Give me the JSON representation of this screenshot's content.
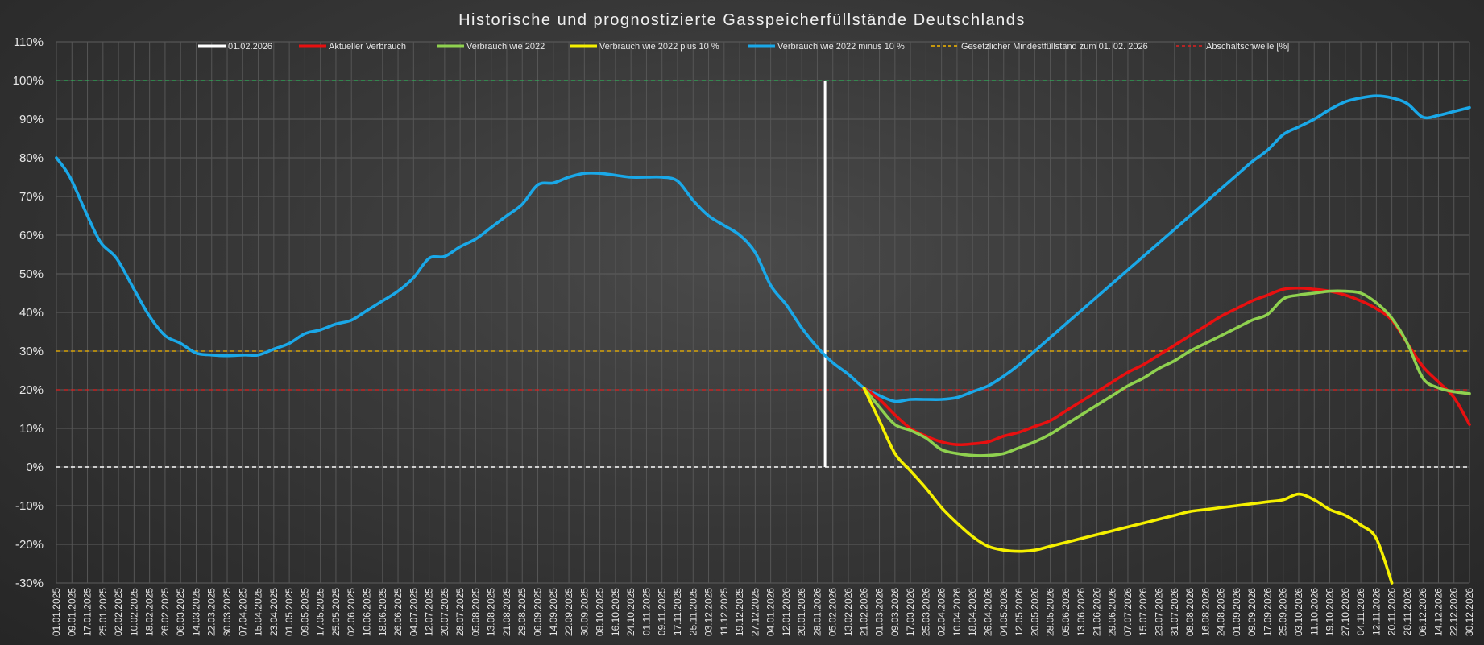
{
  "chart_data": {
    "type": "line",
    "title": "Historische und prognostizierte Gasspeicherfüllstände Deutschlands",
    "ylim": [
      -30,
      110
    ],
    "yticks": [
      110,
      100,
      90,
      80,
      70,
      60,
      50,
      40,
      30,
      20,
      10,
      0,
      -10,
      -20,
      -30
    ],
    "ytick_labels": [
      "110%",
      "100%",
      "90%",
      "80%",
      "70%",
      "60%",
      "50%",
      "40%",
      "30%",
      "20%",
      "10%",
      "0%",
      "-10%",
      "-20%",
      "-30%"
    ],
    "x_range": [
      "2025-01-01",
      "2026-12-30"
    ],
    "x_tick_labels": [
      "01.01.2025",
      "09.01.2025",
      "17.01.2025",
      "25.01.2025",
      "02.02.2025",
      "10.02.2025",
      "18.02.2025",
      "26.02.2025",
      "06.03.2025",
      "14.03.2025",
      "22.03.2025",
      "30.03.2025",
      "07.04.2025",
      "15.04.2025",
      "23.04.2025",
      "01.05.2025",
      "09.05.2025",
      "17.05.2025",
      "25.05.2025",
      "02.06.2025",
      "10.06.2025",
      "18.06.2025",
      "26.06.2025",
      "04.07.2025",
      "12.07.2025",
      "20.07.2025",
      "28.07.2025",
      "05.08.2025",
      "13.08.2025",
      "21.08.2025",
      "29.08.2025",
      "06.09.2025",
      "14.09.2025",
      "22.09.2025",
      "30.09.2025",
      "08.10.2025",
      "16.10.2025",
      "24.10.2025",
      "01.11.2025",
      "09.11.2025",
      "17.11.2025",
      "25.11.2025",
      "03.12.2025",
      "11.12.2025",
      "19.12.2025",
      "27.12.2025",
      "04.01.2026",
      "12.01.2026",
      "20.01.2026",
      "28.01.2026",
      "05.02.2026",
      "13.02.2026",
      "21.02.2026",
      "01.03.2026",
      "09.03.2026",
      "17.03.2026",
      "25.03.2026",
      "02.04.2026",
      "10.04.2026",
      "18.04.2026",
      "26.04.2026",
      "04.05.2026",
      "12.05.2026",
      "20.05.2026",
      "28.05.2026",
      "05.06.2026",
      "13.06.2026",
      "21.06.2026",
      "29.06.2026",
      "07.07.2026",
      "15.07.2026",
      "23.07.2026",
      "31.07.2026",
      "08.08.2026",
      "16.08.2026",
      "24.08.2026",
      "01.09.2026",
      "09.09.2026",
      "17.09.2026",
      "25.09.2026",
      "03.10.2026",
      "11.10.2026",
      "19.10.2026",
      "27.10.2026",
      "04.11.2026",
      "12.11.2026",
      "20.11.2026",
      "28.11.2026",
      "06.12.2026",
      "14.12.2026",
      "22.12.2026",
      "30.12.2026"
    ],
    "grid": true,
    "legend_position": "top",
    "marker_line": {
      "name": "01.02.2026",
      "x": "2026-02-01",
      "y_from": 0,
      "y_to": 100,
      "color": "#ffffff"
    },
    "reference_lines": [
      {
        "value": 100,
        "color": "#2fb35a"
      },
      {
        "value": 0,
        "color": "#ffffff"
      },
      {
        "name": "Gesetzlicher Mindestfüllstand zum 01. 02. 2026",
        "value": 30,
        "color": "#f5b800"
      },
      {
        "name": "Abschaltschwelle [%]",
        "value": 20,
        "color": "#e02020"
      }
    ],
    "series": [
      {
        "name": "Verbrauch wie 2022 minus 10 %",
        "color": "#1aa8e8",
        "x": [
          "2025-01-01",
          "2025-01-08",
          "2025-01-17",
          "2025-01-24",
          "2025-02-01",
          "2025-02-10",
          "2025-02-18",
          "2025-02-26",
          "2025-03-06",
          "2025-03-14",
          "2025-03-22",
          "2025-03-30",
          "2025-04-08",
          "2025-04-15",
          "2025-04-23",
          "2025-05-01",
          "2025-05-09",
          "2025-05-17",
          "2025-05-25",
          "2025-06-02",
          "2025-06-10",
          "2025-06-18",
          "2025-06-26",
          "2025-07-04",
          "2025-07-12",
          "2025-07-20",
          "2025-07-28",
          "2025-08-05",
          "2025-08-13",
          "2025-08-21",
          "2025-08-29",
          "2025-09-06",
          "2025-09-14",
          "2025-09-22",
          "2025-09-30",
          "2025-10-08",
          "2025-10-16",
          "2025-10-24",
          "2025-11-01",
          "2025-11-09",
          "2025-11-17",
          "2025-11-25",
          "2025-12-03",
          "2025-12-11",
          "2025-12-19",
          "2025-12-27",
          "2026-01-04",
          "2026-01-12",
          "2026-01-20",
          "2026-01-28",
          "2026-02-05",
          "2026-02-13",
          "2026-02-21",
          "2026-03-01",
          "2026-03-09",
          "2026-03-17",
          "2026-03-25",
          "2026-04-02",
          "2026-04-10",
          "2026-04-18",
          "2026-04-26",
          "2026-05-04",
          "2026-05-12",
          "2026-05-20",
          "2026-05-28",
          "2026-06-05",
          "2026-06-13",
          "2026-06-21",
          "2026-06-29",
          "2026-07-07",
          "2026-07-15",
          "2026-07-23",
          "2026-07-31",
          "2026-08-08",
          "2026-08-16",
          "2026-08-24",
          "2026-09-01",
          "2026-09-09",
          "2026-09-17",
          "2026-09-25",
          "2026-10-03",
          "2026-10-11",
          "2026-10-19",
          "2026-10-27",
          "2026-11-04",
          "2026-11-12",
          "2026-11-20",
          "2026-11-28",
          "2026-12-06",
          "2026-12-14",
          "2026-12-22",
          "2026-12-30"
        ],
        "values": [
          80,
          75,
          65,
          58,
          54,
          46,
          39,
          34,
          32,
          29.5,
          29,
          28.8,
          29,
          29,
          30.5,
          32,
          34.5,
          35.5,
          37,
          38,
          40.5,
          43,
          45.5,
          49,
          54,
          54.5,
          57,
          59,
          62,
          65,
          68,
          73,
          73.5,
          75,
          76,
          76,
          75.5,
          75,
          75,
          75,
          74,
          69,
          65,
          62.5,
          60,
          55.5,
          47,
          42,
          36,
          31,
          27,
          24,
          20.5,
          18.5,
          17,
          17.5,
          17.5,
          17.5,
          18,
          19.5,
          21,
          23.5,
          26.5,
          30,
          33.5,
          37,
          40.5,
          44,
          47.5,
          51,
          54.5,
          58,
          61.5,
          65,
          68.5,
          72,
          75.5,
          79,
          82,
          86,
          88,
          90,
          92.5,
          94.5,
          95.5,
          96,
          95.5,
          94,
          90.5,
          91,
          92,
          93
        ]
      },
      {
        "name": "Aktueller Verbrauch",
        "color": "#e81010",
        "x": [
          "2026-02-21",
          "2026-03-01",
          "2026-03-09",
          "2026-03-17",
          "2026-03-25",
          "2026-04-02",
          "2026-04-10",
          "2026-04-18",
          "2026-04-26",
          "2026-05-04",
          "2026-05-12",
          "2026-05-20",
          "2026-05-28",
          "2026-06-05",
          "2026-06-13",
          "2026-06-21",
          "2026-06-29",
          "2026-07-07",
          "2026-07-15",
          "2026-07-23",
          "2026-07-31",
          "2026-08-08",
          "2026-08-16",
          "2026-08-24",
          "2026-09-01",
          "2026-09-09",
          "2026-09-17",
          "2026-09-25",
          "2026-10-03",
          "2026-10-11",
          "2026-10-19",
          "2026-10-27",
          "2026-11-04",
          "2026-11-12",
          "2026-11-20",
          "2026-11-28",
          "2026-12-06",
          "2026-12-14",
          "2026-12-22",
          "2026-12-30"
        ],
        "values": [
          20.5,
          17.5,
          13.5,
          10,
          8,
          6.5,
          5.8,
          6,
          6.5,
          8,
          9,
          10.5,
          12,
          14.5,
          17,
          19.5,
          22,
          24.5,
          26.5,
          29,
          31.5,
          34,
          36.5,
          39,
          41,
          43,
          44.5,
          46,
          46.3,
          46,
          45.5,
          44.5,
          43,
          41,
          38,
          32,
          26,
          22,
          18,
          11
        ]
      },
      {
        "name": "Verbrauch wie 2022",
        "color": "#8fd14f",
        "x": [
          "2026-02-21",
          "2026-03-01",
          "2026-03-09",
          "2026-03-17",
          "2026-03-25",
          "2026-04-02",
          "2026-04-10",
          "2026-04-18",
          "2026-04-26",
          "2026-05-04",
          "2026-05-12",
          "2026-05-20",
          "2026-05-28",
          "2026-06-05",
          "2026-06-13",
          "2026-06-21",
          "2026-06-29",
          "2026-07-07",
          "2026-07-15",
          "2026-07-23",
          "2026-07-31",
          "2026-08-08",
          "2026-08-16",
          "2026-08-24",
          "2026-09-01",
          "2026-09-09",
          "2026-09-17",
          "2026-09-25",
          "2026-10-03",
          "2026-10-11",
          "2026-10-19",
          "2026-10-27",
          "2026-11-04",
          "2026-11-12",
          "2026-11-20",
          "2026-11-28",
          "2026-12-06",
          "2026-12-14",
          "2026-12-22",
          "2026-12-30"
        ],
        "values": [
          20.5,
          15.5,
          11,
          9.5,
          7.5,
          4.5,
          3.5,
          3,
          3,
          3.5,
          5,
          6.5,
          8.5,
          11,
          13.5,
          16,
          18.5,
          21,
          23,
          25.5,
          27.5,
          30,
          32,
          34,
          36,
          38,
          39.5,
          43.5,
          44.5,
          45,
          45.5,
          45.5,
          45,
          42.5,
          38.5,
          32,
          23,
          20.5,
          19.5,
          19
        ]
      },
      {
        "name": "Verbrauch wie 2022 plus 10 %",
        "color": "#f5f000",
        "x": [
          "2026-02-21",
          "2026-03-01",
          "2026-03-09",
          "2026-03-17",
          "2026-03-25",
          "2026-04-02",
          "2026-04-10",
          "2026-04-18",
          "2026-04-26",
          "2026-05-04",
          "2026-05-12",
          "2026-05-20",
          "2026-05-28",
          "2026-06-05",
          "2026-06-13",
          "2026-06-21",
          "2026-06-29",
          "2026-07-07",
          "2026-07-15",
          "2026-07-23",
          "2026-07-31",
          "2026-08-08",
          "2026-08-16",
          "2026-08-24",
          "2026-09-01",
          "2026-09-09",
          "2026-09-17",
          "2026-09-25",
          "2026-10-03",
          "2026-10-11",
          "2026-10-19",
          "2026-10-27",
          "2026-11-04",
          "2026-11-12",
          "2026-11-20"
        ],
        "values": [
          20.5,
          12,
          3.5,
          -1,
          -5.5,
          -10.5,
          -14.5,
          -18,
          -20.5,
          -21.5,
          -21.8,
          -21.5,
          -20.5,
          -19.5,
          -18.5,
          -17.5,
          -16.5,
          -15.5,
          -14.5,
          -13.5,
          -12.5,
          -11.5,
          -11,
          -10.5,
          -10,
          -9.5,
          -9,
          -8.5,
          -7,
          -8.5,
          -11,
          -12.5,
          -15,
          -18.5,
          -30
        ]
      }
    ]
  }
}
